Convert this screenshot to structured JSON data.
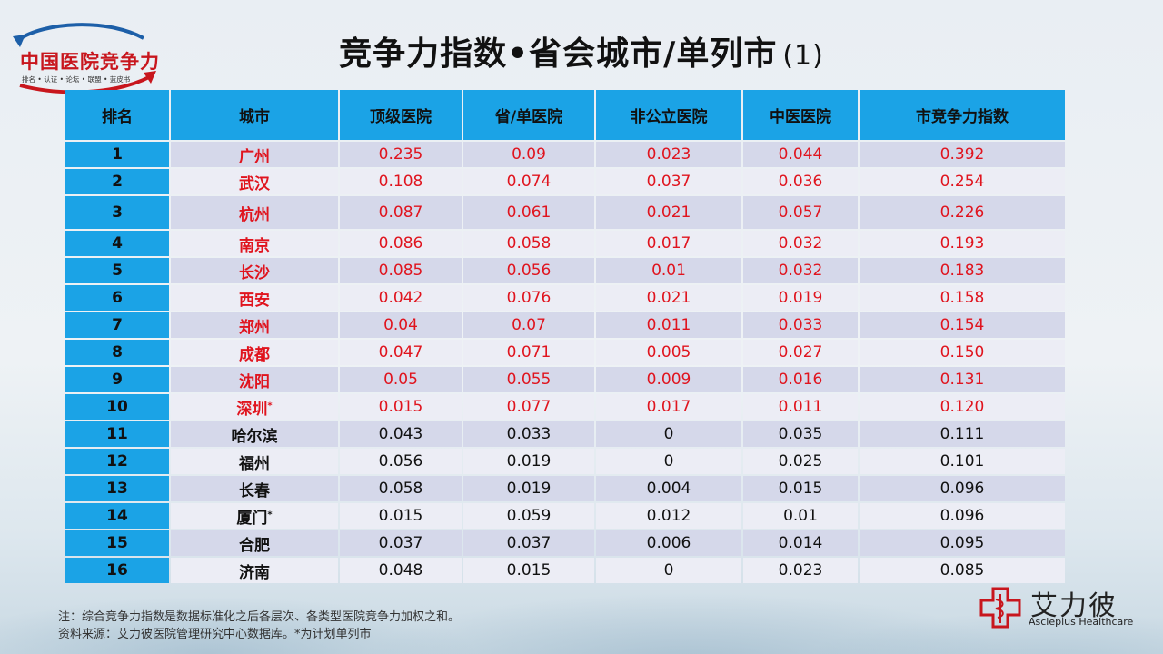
{
  "logo": {
    "name": "中国医院竞争力",
    "tagline": "排名 • 认证 • 论坛 • 联盟 • 蓝皮书"
  },
  "title": {
    "main": "竞争力指数•省会城市/单列市",
    "suffix": "(1)"
  },
  "table": {
    "headers": [
      "排名",
      "城市",
      "顶级医院",
      "省/单医院",
      "非公立医院",
      "中医医院",
      "市竞争力指数"
    ],
    "rows": [
      {
        "rank": "1",
        "city": "广州",
        "mark": "",
        "v1": "0.235",
        "v2": "0.09",
        "v3": "0.023",
        "v4": "0.044",
        "index": "0.392"
      },
      {
        "rank": "2",
        "city": "武汉",
        "mark": "",
        "v1": "0.108",
        "v2": "0.074",
        "v3": "0.037",
        "v4": "0.036",
        "index": "0.254"
      },
      {
        "rank": "3",
        "city": "杭州",
        "mark": "",
        "v1": "0.087",
        "v2": "0.061",
        "v3": "0.021",
        "v4": "0.057",
        "index": "0.226"
      },
      {
        "rank": "4",
        "city": "南京",
        "mark": "",
        "v1": "0.086",
        "v2": "0.058",
        "v3": "0.017",
        "v4": "0.032",
        "index": "0.193"
      },
      {
        "rank": "5",
        "city": "长沙",
        "mark": "",
        "v1": "0.085",
        "v2": "0.056",
        "v3": "0.01",
        "v4": "0.032",
        "index": "0.183"
      },
      {
        "rank": "6",
        "city": "西安",
        "mark": "",
        "v1": "0.042",
        "v2": "0.076",
        "v3": "0.021",
        "v4": "0.019",
        "index": "0.158"
      },
      {
        "rank": "7",
        "city": "郑州",
        "mark": "",
        "v1": "0.04",
        "v2": "0.07",
        "v3": "0.011",
        "v4": "0.033",
        "index": "0.154"
      },
      {
        "rank": "8",
        "city": "成都",
        "mark": "",
        "v1": "0.047",
        "v2": "0.071",
        "v3": "0.005",
        "v4": "0.027",
        "index": "0.150"
      },
      {
        "rank": "9",
        "city": "沈阳",
        "mark": "",
        "v1": "0.05",
        "v2": "0.055",
        "v3": "0.009",
        "v4": "0.016",
        "index": "0.131"
      },
      {
        "rank": "10",
        "city": "深圳",
        "mark": "*",
        "v1": "0.015",
        "v2": "0.077",
        "v3": "0.017",
        "v4": "0.011",
        "index": "0.120"
      },
      {
        "rank": "11",
        "city": "哈尔滨",
        "mark": "",
        "v1": "0.043",
        "v2": "0.033",
        "v3": "0",
        "v4": "0.035",
        "index": "0.111"
      },
      {
        "rank": "12",
        "city": "福州",
        "mark": "",
        "v1": "0.056",
        "v2": "0.019",
        "v3": "0",
        "v4": "0.025",
        "index": "0.101"
      },
      {
        "rank": "13",
        "city": "长春",
        "mark": "",
        "v1": "0.058",
        "v2": "0.019",
        "v3": "0.004",
        "v4": "0.015",
        "index": "0.096"
      },
      {
        "rank": "14",
        "city": "厦门",
        "mark": "*",
        "v1": "0.015",
        "v2": "0.059",
        "v3": "0.012",
        "v4": "0.01",
        "index": "0.096"
      },
      {
        "rank": "15",
        "city": "合肥",
        "mark": "",
        "v1": "0.037",
        "v2": "0.037",
        "v3": "0.006",
        "v4": "0.014",
        "index": "0.095"
      },
      {
        "rank": "16",
        "city": "济南",
        "mark": "",
        "v1": "0.048",
        "v2": "0.015",
        "v3": "0",
        "v4": "0.023",
        "index": "0.085"
      }
    ],
    "highlight_top_n": 10,
    "colors": {
      "header": "#1ba3e6",
      "highlight_text": "#e0141e",
      "row_odd": "#d5d8ea",
      "row_even": "#ecedf5"
    }
  },
  "notes": {
    "line1": "注：综合竞争力指数是数据标准化之后各层次、各类型医院竞争力加权之和。",
    "line2": "资料来源：艾力彼医院管理研究中心数据库。*为计划单列市"
  },
  "brand": {
    "name_cn": "艾力彼",
    "name_en": "Asclepius Healthcare"
  }
}
